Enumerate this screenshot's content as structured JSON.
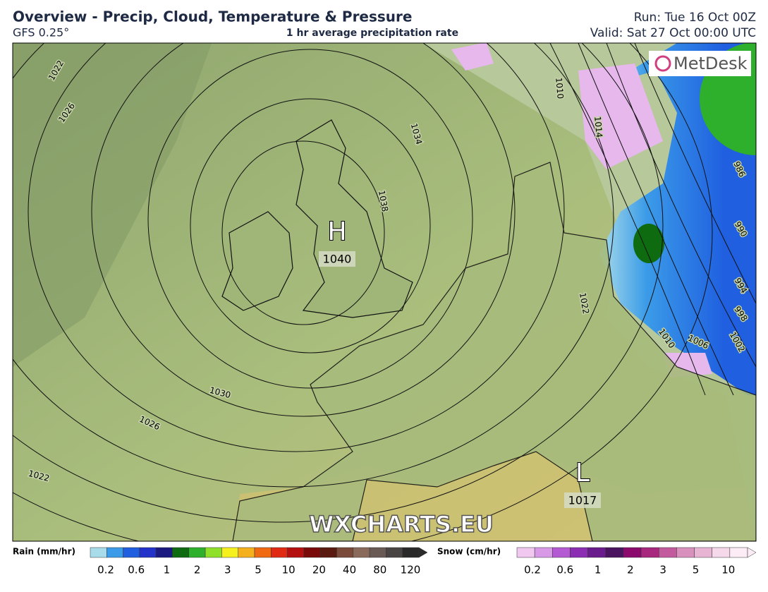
{
  "header": {
    "title": "Overview - Precip, Cloud, Temperature & Pressure",
    "model": "GFS 0.25°",
    "subtitle": "1 hr average precipitation rate",
    "run": "Run: Tue 16 Oct 00Z",
    "valid": "Valid: Sat 27 Oct 00:00 UTC"
  },
  "map": {
    "logo": "MetDesk",
    "watermark": "WXCHARTS.EU",
    "centers": [
      {
        "symbol": "H",
        "pressure": 1040
      },
      {
        "symbol": "L",
        "pressure": 1017
      }
    ],
    "isobar_labels": [
      1022,
      1026,
      1034,
      1038,
      1010,
      1014,
      1022,
      1010,
      1006,
      1002,
      998,
      994,
      990,
      986,
      1030,
      1026,
      1022
    ]
  },
  "legend": {
    "rain": {
      "title": "Rain (mm/hr)",
      "ticks": [
        0.2,
        0.6,
        1,
        2,
        3,
        5,
        10,
        20,
        40,
        80,
        120
      ],
      "colors": [
        "#a8dcea",
        "#3b9be8",
        "#1f5fe0",
        "#2332c8",
        "#1a1a80",
        "#0e6b10",
        "#2fb02c",
        "#8fe02a",
        "#f5f01e",
        "#f5b01e",
        "#f06a14",
        "#e02a14",
        "#b41010",
        "#7a0a0a",
        "#5a1a10",
        "#7a4a3a",
        "#8a6a5a",
        "#6a5a55",
        "#4a4545",
        "#2a2a2a"
      ]
    },
    "snow": {
      "title": "Snow (cm/hr)",
      "ticks": [
        0.2,
        0.6,
        1,
        2,
        3,
        5,
        10
      ],
      "colors": [
        "#f0c8f0",
        "#d89ae6",
        "#b45ad2",
        "#8c2eb4",
        "#6a1c8c",
        "#4a1460",
        "#8c0a6e",
        "#a8287e",
        "#c45a9e",
        "#d890bc",
        "#e8b4d4",
        "#f5d8ea",
        "#fcecf6"
      ]
    }
  }
}
